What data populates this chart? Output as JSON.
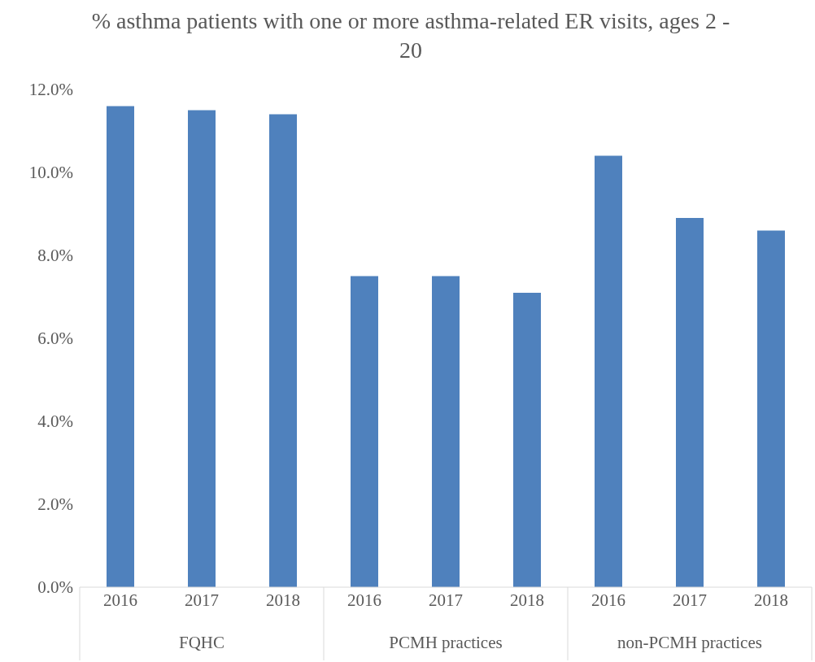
{
  "chart_data": {
    "type": "bar",
    "title": "% asthma patients with one or more asthma-related ER visits, ages 2 - 20",
    "categories": [
      "2016",
      "2017",
      "2018",
      "2016",
      "2017",
      "2018",
      "2016",
      "2017",
      "2018"
    ],
    "values": [
      11.6,
      11.5,
      11.4,
      7.5,
      7.5,
      7.1,
      10.4,
      8.9,
      8.6
    ],
    "color": "#4f81bd",
    "ylim": [
      0,
      12
    ],
    "yticks": [
      {
        "value": 0,
        "label": "0.0%"
      },
      {
        "value": 2,
        "label": "2.0%"
      },
      {
        "value": 4,
        "label": "4.0%"
      },
      {
        "value": 6,
        "label": "6.0%"
      },
      {
        "value": 8,
        "label": "8.0%"
      },
      {
        "value": 10,
        "label": "10.0%"
      },
      {
        "value": 12,
        "label": "12.0%"
      }
    ],
    "annotations": [
      "FQHC",
      "PCMH practices",
      "non-PCMH practices"
    ]
  }
}
